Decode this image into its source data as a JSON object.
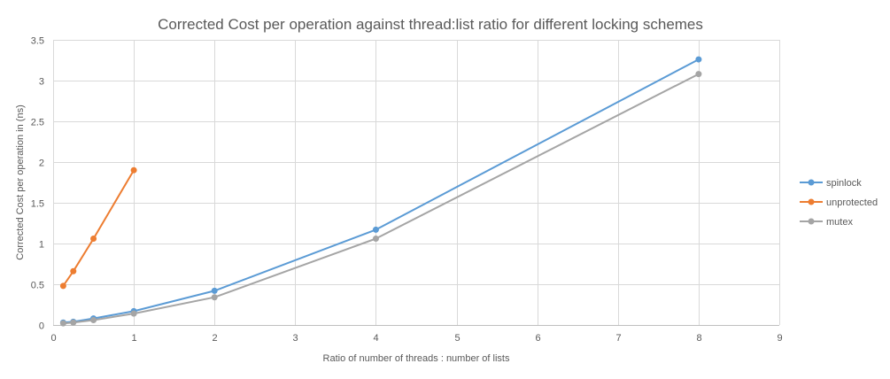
{
  "chart_data": {
    "type": "line",
    "title": "Corrected Cost per operation against thread:list ratio for different locking schemes",
    "xlabel": "Ratio of number of threads : number of lists",
    "ylabel": "Corrected Cost per operation in (ns)",
    "xlim": [
      0,
      9
    ],
    "ylim": [
      0,
      3.5
    ],
    "xticks": [
      0,
      1,
      2,
      3,
      4,
      5,
      6,
      7,
      8,
      9
    ],
    "yticks": [
      0,
      0.5,
      1,
      1.5,
      2,
      2.5,
      3,
      3.5
    ],
    "grid": true,
    "legend_position": "right",
    "series": [
      {
        "name": "spinlock",
        "color": "#5b9bd5",
        "x": [
          0.125,
          0.25,
          0.5,
          1,
          2,
          4,
          8
        ],
        "y": [
          0.03,
          0.04,
          0.08,
          0.17,
          0.42,
          1.17,
          3.26
        ]
      },
      {
        "name": "unprotected",
        "color": "#ed7d31",
        "x": [
          0.125,
          0.25,
          0.5,
          1
        ],
        "y": [
          0.48,
          0.66,
          1.06,
          1.9
        ]
      },
      {
        "name": "mutex",
        "color": "#a5a5a5",
        "x": [
          0.125,
          0.25,
          0.5,
          1,
          2,
          4,
          8
        ],
        "y": [
          0.02,
          0.03,
          0.06,
          0.14,
          0.34,
          1.06,
          3.08
        ]
      }
    ]
  }
}
